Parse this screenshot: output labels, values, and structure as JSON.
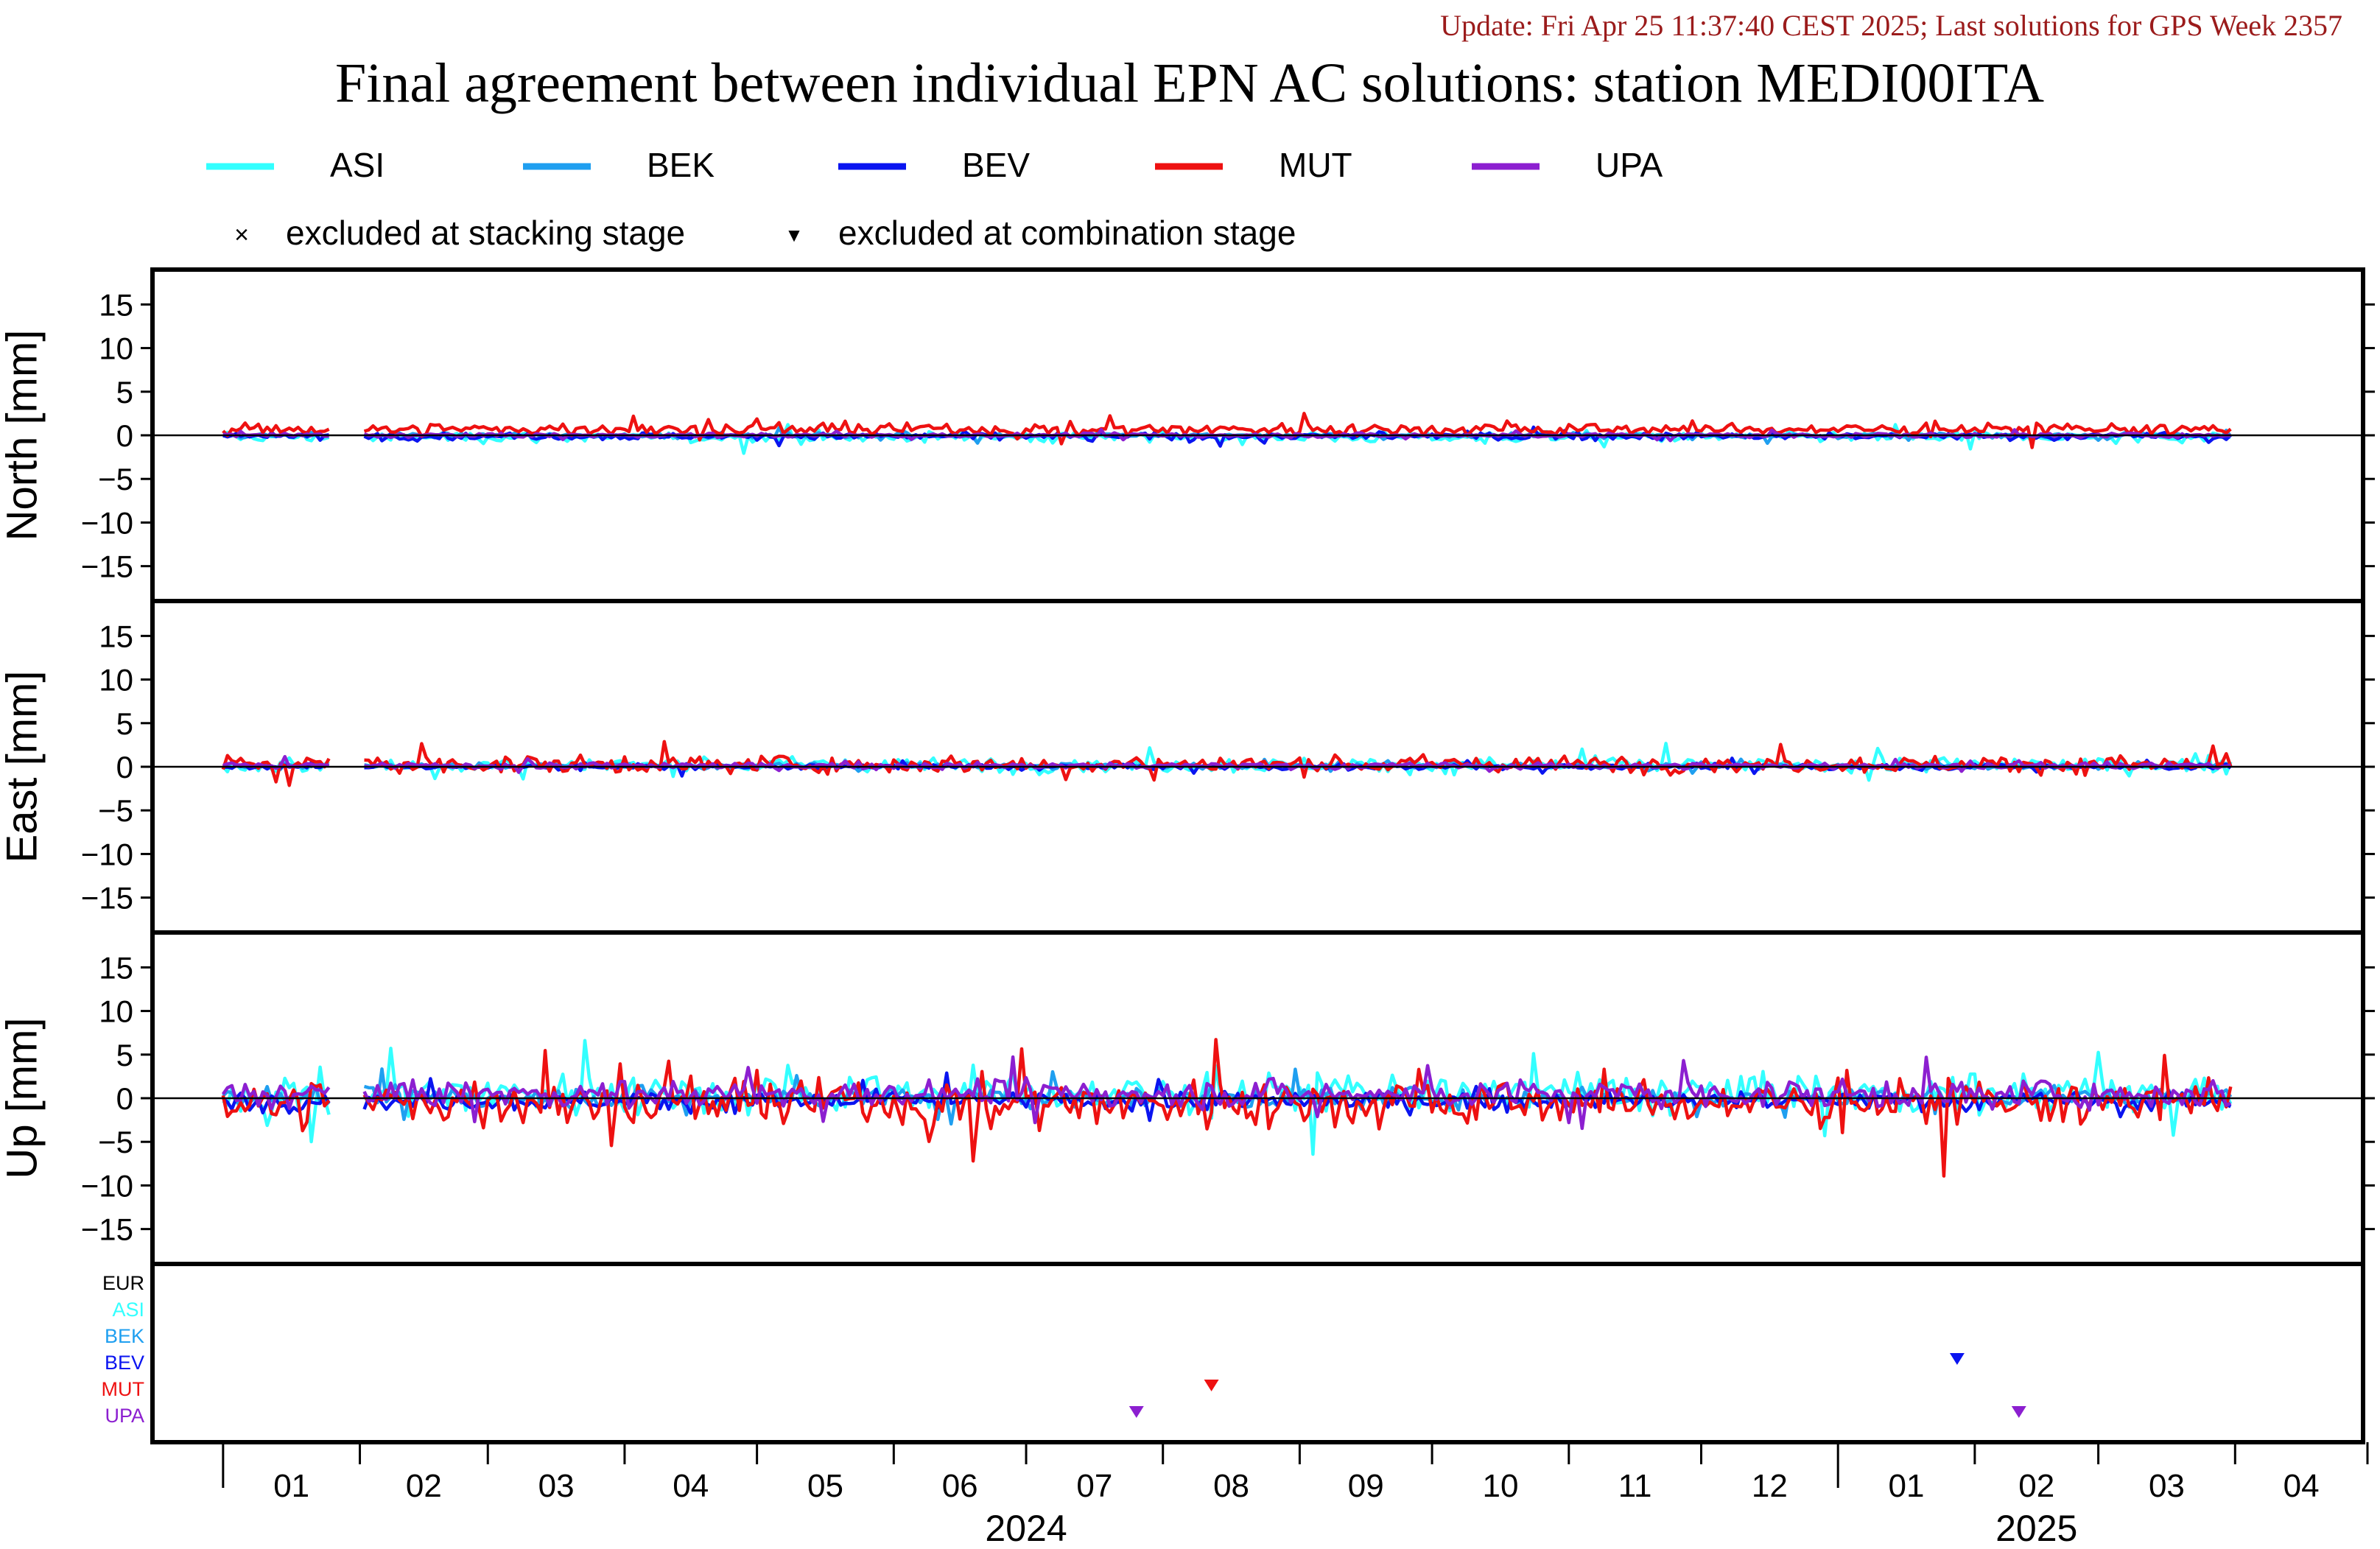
{
  "update_line": "Update: Fri Apr 25 11:37:40 CEST 2025; Last solutions for GPS Week 2357",
  "title": "Final agreement between individual EPN AC solutions: station MEDI00ITA",
  "colors": {
    "ASI": "#33ffff",
    "BEK": "#1f9ff0",
    "BEV": "#0a14f0",
    "MUT": "#ee1111",
    "UPA": "#8c1fd0",
    "EUR": "#000000",
    "update_text": "#9b1b1b"
  },
  "legend": {
    "series": [
      "ASI",
      "BEK",
      "BEV",
      "MUT",
      "UPA"
    ],
    "excluded_stacking": "excluded at stacking stage",
    "excluded_combination": "excluded at combination stage",
    "stacking_symbol": "×",
    "combination_symbol": "▼"
  },
  "chart_data": {
    "type": "line",
    "x_range": [
      "2023-12-16",
      "2025-04-30"
    ],
    "y_range": [
      -19,
      19
    ],
    "y_ticks": [
      15,
      10,
      5,
      0,
      -5,
      -10,
      -15
    ],
    "y_tick_labels": [
      "15",
      "10",
      "5",
      "0",
      "−5",
      "−10",
      "−15"
    ],
    "grid": false,
    "zero_line": true,
    "data_start": "2024-01-01",
    "data_end": "2025-03-31",
    "data_gaps": [
      [
        "2024-01-26",
        "2024-02-01"
      ]
    ],
    "panels": [
      {
        "ylabel": "North [mm]",
        "amplitude": {
          "ASI": 0.5,
          "BEK": 0.25,
          "BEV": 0.35,
          "MUT": 0.6,
          "UPA": 0.2
        },
        "offset": {
          "ASI": -0.2,
          "BEK": 0.0,
          "BEV": -0.1,
          "MUT": 0.7,
          "UPA": 0.0
        }
      },
      {
        "ylabel": "East [mm]",
        "amplitude": {
          "ASI": 0.7,
          "BEK": 0.3,
          "BEV": 0.3,
          "MUT": 0.8,
          "UPA": 0.3
        },
        "offset": {
          "ASI": 0.2,
          "BEK": 0.1,
          "BEV": 0.0,
          "MUT": 0.3,
          "UPA": 0.1
        }
      },
      {
        "ylabel": "Up [mm]",
        "amplitude": {
          "ASI": 2.0,
          "BEK": 1.0,
          "BEV": 0.9,
          "MUT": 2.4,
          "UPA": 1.3
        },
        "offset": {
          "ASI": 0.6,
          "BEK": 0.1,
          "BEV": -0.3,
          "MUT": -0.5,
          "UPA": 0.5
        }
      }
    ],
    "exclusion_panel": {
      "rows": [
        "EUR",
        "ASI",
        "BEK",
        "BEV",
        "MUT",
        "UPA"
      ],
      "markers": [
        {
          "ac": "UPA",
          "date": "2024-07-26",
          "symbol": "▼"
        },
        {
          "ac": "MUT",
          "date": "2024-08-12",
          "symbol": "▼"
        },
        {
          "ac": "BEV",
          "date": "2025-01-28",
          "symbol": "▼"
        },
        {
          "ac": "UPA",
          "date": "2025-02-11",
          "symbol": "▼"
        }
      ]
    },
    "x_axis": {
      "month_labels": [
        "01",
        "02",
        "03",
        "04",
        "05",
        "06",
        "07",
        "08",
        "09",
        "10",
        "11",
        "12",
        "01",
        "02",
        "03",
        "04"
      ],
      "year_labels": [
        {
          "year": "2024",
          "center": "2024-07-01"
        },
        {
          "year": "2025",
          "center": "2025-02-15"
        }
      ]
    }
  }
}
